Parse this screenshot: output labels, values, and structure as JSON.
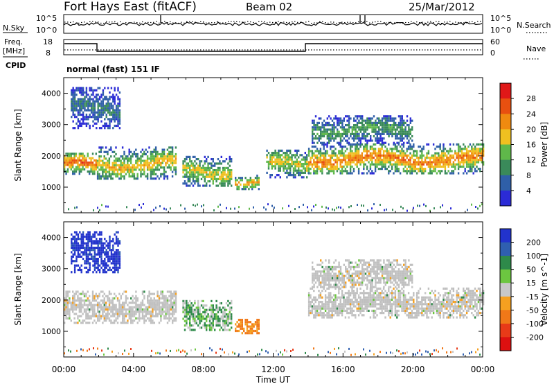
{
  "header": {
    "station": "Fort Hays East (fitACF)",
    "beam": "Beam 02",
    "date": "25/Mar/2012"
  },
  "top_panels": {
    "nsky_label": "N.Sky",
    "nsky_ticks": [
      "10^5",
      "10^0"
    ],
    "nsearch_label": "N.Search",
    "nsearch_ticks": [
      "10^5",
      "10^0"
    ],
    "freq_label_line1": "Freq.",
    "freq_label_line2": "[MHz]",
    "freq_ticks": [
      "18",
      "8"
    ],
    "nave_label": "Nave",
    "nave_ticks": [
      "60",
      "0"
    ],
    "cpid_label": "CPID",
    "cpid_text": "normal (fast) 151 IF"
  },
  "colors": {
    "power_scale": [
      "#2b2bd6",
      "#2f5fa8",
      "#3a8a5a",
      "#5fb84a",
      "#f0c020",
      "#f08a10",
      "#e85010",
      "#e01818"
    ],
    "velocity_scale": [
      "#2233cc",
      "#2f5fb0",
      "#2e8a4a",
      "#6cc640",
      "#c8c8c8",
      "#f5a020",
      "#f07818",
      "#e83a18",
      "#dd1010"
    ],
    "ground_scatter": "#c0c0c0"
  },
  "chart_data": [
    {
      "type": "heatmap",
      "panel": "power",
      "xlabel": "",
      "ylabel": "Slant Range [km]",
      "x_ticks": [
        "00:00",
        "04:00",
        "08:00",
        "12:00",
        "16:00",
        "20:00",
        "00:00"
      ],
      "xlim_hours": [
        0,
        24
      ],
      "y_ticks": [
        1000,
        2000,
        3000,
        4000
      ],
      "ylim": [
        180,
        4500
      ],
      "colorbar": {
        "label": "Power [dB]",
        "ticks": [
          4,
          8,
          12,
          16,
          20,
          24,
          28
        ],
        "range": [
          0,
          32
        ]
      },
      "echo_regions": [
        {
          "t": [
            0.0,
            1.9
          ],
          "range": [
            1400,
            2100
          ],
          "peak_db": 26
        },
        {
          "t": [
            1.9,
            6.4
          ],
          "range": [
            1250,
            2300
          ],
          "peak_db": 20
        },
        {
          "t": [
            6.8,
            9.6
          ],
          "range": [
            1050,
            2000
          ],
          "peak_db": 18
        },
        {
          "t": [
            9.8,
            11.2
          ],
          "range": [
            950,
            1400
          ],
          "peak_db": 22
        },
        {
          "t": [
            11.6,
            14.0
          ],
          "range": [
            1300,
            2200
          ],
          "peak_db": 18
        },
        {
          "t": [
            14.0,
            24.0
          ],
          "range": [
            1450,
            2400
          ],
          "peak_db": 24
        },
        {
          "t": [
            14.2,
            20.0
          ],
          "range": [
            2400,
            3300
          ],
          "peak_db": 12
        },
        {
          "t": [
            0.4,
            3.2
          ],
          "range": [
            2900,
            4200
          ],
          "peak_db": 8
        }
      ],
      "grid": false
    },
    {
      "type": "heatmap",
      "panel": "velocity",
      "xlabel": "Time UT",
      "ylabel": "Slant Range [km]",
      "x_ticks": [
        "00:00",
        "04:00",
        "08:00",
        "12:00",
        "16:00",
        "20:00",
        "00:00"
      ],
      "xlim_hours": [
        0,
        24
      ],
      "y_ticks": [
        1000,
        2000,
        3000,
        4000
      ],
      "ylim": [
        180,
        4500
      ],
      "colorbar": {
        "label": "Velocity [m s^-1]",
        "ticks": [
          200,
          100,
          50,
          15,
          -15,
          -50,
          -100,
          -200
        ],
        "range": [
          -250,
          250
        ]
      },
      "echo_regions": [
        {
          "t": [
            0.0,
            6.4
          ],
          "range": [
            1250,
            2300
          ],
          "velocity": 0,
          "ground_scatter": true
        },
        {
          "t": [
            6.8,
            9.6
          ],
          "range": [
            1050,
            2000
          ],
          "velocity": 30
        },
        {
          "t": [
            9.8,
            11.2
          ],
          "range": [
            950,
            1400
          ],
          "velocity": -60
        },
        {
          "t": [
            14.0,
            24.0
          ],
          "range": [
            1450,
            2400
          ],
          "velocity": 0,
          "ground_scatter": true
        },
        {
          "t": [
            14.2,
            20.0
          ],
          "range": [
            2400,
            3300
          ],
          "velocity": 0,
          "ground_scatter": true
        },
        {
          "t": [
            0.4,
            3.2
          ],
          "range": [
            2900,
            4200
          ],
          "velocity": 180
        }
      ],
      "grid": false
    }
  ]
}
